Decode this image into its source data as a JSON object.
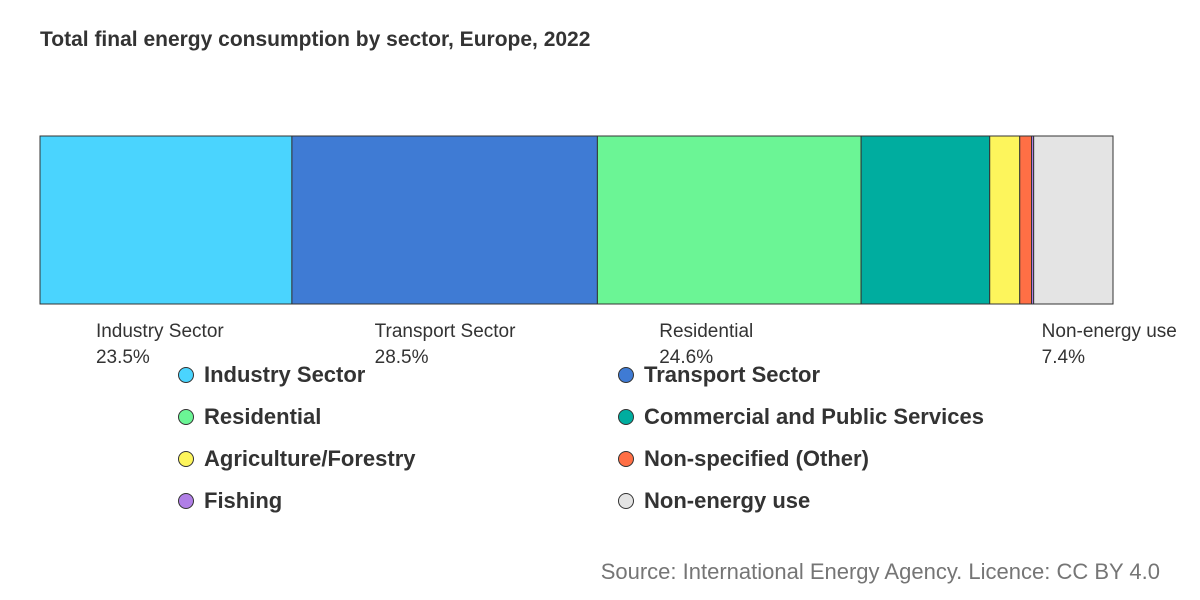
{
  "chart_data": {
    "type": "bar",
    "orientation": "horizontal-stacked-100",
    "title": "Total final energy consumption by sector, Europe, 2022",
    "unit": "%",
    "segments": [
      {
        "name": "Industry Sector",
        "value": 23.5,
        "color": "#4ad4fe",
        "label": "Industry Sector",
        "value_label": "23.5%"
      },
      {
        "name": "Transport Sector",
        "value": 28.5,
        "color": "#3f7bd4",
        "label": "Transport Sector",
        "value_label": "28.5%"
      },
      {
        "name": "Residential",
        "value": 24.6,
        "color": "#6bf595",
        "label": "Residential",
        "value_label": "24.6%"
      },
      {
        "name": "Commercial and Public Services",
        "value": 12.0,
        "color": "#00ad9f",
        "label": "",
        "value_label": ""
      },
      {
        "name": "Agriculture/Forestry",
        "value": 2.8,
        "color": "#fdf55c",
        "label": "",
        "value_label": ""
      },
      {
        "name": "Non-specified (Other)",
        "value": 1.1,
        "color": "#ff6f45",
        "label": "",
        "value_label": ""
      },
      {
        "name": "Fishing",
        "value": 0.2,
        "color": "#b07fe6",
        "label": "",
        "value_label": ""
      },
      {
        "name": "Non-energy use",
        "value": 7.4,
        "color": "#e4e4e4",
        "label": "Non-energy use",
        "value_label": "7.4%"
      }
    ],
    "legend": [
      {
        "label": "Industry Sector",
        "color": "#4ad4fe"
      },
      {
        "label": "Transport Sector",
        "color": "#3f7bd4"
      },
      {
        "label": "Residential",
        "color": "#6bf595"
      },
      {
        "label": "Commercial and Public Services",
        "color": "#00ad9f"
      },
      {
        "label": "Agriculture/Forestry",
        "color": "#fdf55c"
      },
      {
        "label": "Non-specified (Other)",
        "color": "#ff6f45"
      },
      {
        "label": "Fishing",
        "color": "#b07fe6"
      },
      {
        "label": "Non-energy use",
        "color": "#e4e4e4"
      }
    ],
    "source": "Source: International Energy Agency. Licence: CC BY 4.0"
  }
}
